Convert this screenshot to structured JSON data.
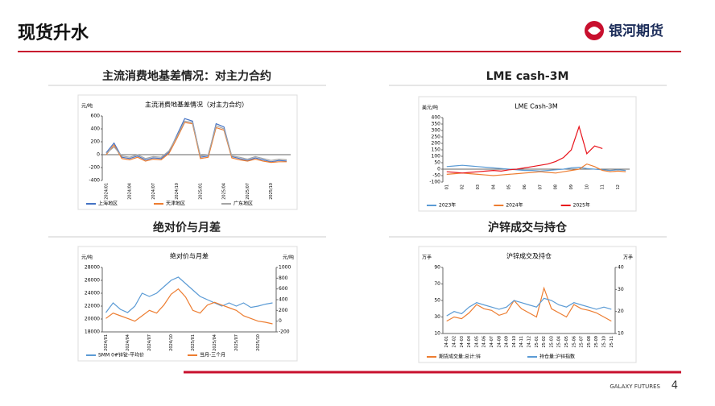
{
  "header": {
    "title": "现货升水",
    "logo": "银河期货"
  },
  "sections": [
    "主流消费地基差情况：对主力合约",
    "LME cash-3M",
    "绝对价与月差",
    "沪锌成交与持仓"
  ],
  "footer": {
    "brand": "GALAXY FUTURES",
    "page": "4"
  },
  "chart_data": [
    {
      "type": "line",
      "title": "主流消费地基差情况（对主力合约）",
      "ylabel": "元/吨",
      "grid": false,
      "categories": [
        "2024/01",
        null,
        null,
        "2024/04",
        null,
        null,
        "2024/07",
        null,
        null,
        "2024/10",
        null,
        null,
        "2025/01",
        null,
        null,
        "2025/04",
        null,
        null,
        "2025/07",
        null,
        null,
        "2025/10",
        null,
        null
      ],
      "ylim": [
        -400,
        600
      ],
      "yticks": [
        -400,
        -200,
        0,
        200,
        400,
        600
      ],
      "series": [
        {
          "name": "上海地区",
          "color": "#4472c4",
          "values": [
            30,
            180,
            -40,
            -60,
            -20,
            -80,
            -50,
            -60,
            40,
            300,
            560,
            520,
            -40,
            -20,
            480,
            430,
            -30,
            -60,
            -90,
            -50,
            -80,
            -110,
            -90,
            -100
          ]
        },
        {
          "name": "天津地区",
          "color": "#ed7d31",
          "values": [
            0,
            150,
            -60,
            -80,
            -40,
            -100,
            -70,
            -80,
            20,
            250,
            500,
            480,
            -60,
            -40,
            420,
            380,
            -50,
            -80,
            -100,
            -70,
            -100,
            -120,
            -110,
            -110
          ]
        },
        {
          "name": "广东地区",
          "color": "#a5a5a5",
          "values": [
            20,
            120,
            -20,
            -40,
            0,
            -60,
            -30,
            -40,
            60,
            280,
            520,
            500,
            -20,
            0,
            450,
            400,
            -20,
            -40,
            -70,
            -30,
            -60,
            -90,
            -70,
            -80
          ]
        }
      ]
    },
    {
      "type": "line",
      "title": "LME Cash-3M",
      "ylabel": "美元/吨",
      "grid": false,
      "categories": [
        "01",
        null,
        "02",
        null,
        "03",
        null,
        "04",
        null,
        "05",
        null,
        "06",
        null,
        "07",
        null,
        "08",
        null,
        "09",
        null,
        "10",
        null,
        "11",
        null,
        "12",
        null
      ],
      "ylim": [
        -100,
        400
      ],
      "yticks": [
        -100,
        -50,
        0,
        50,
        100,
        150,
        200,
        250,
        300,
        350,
        400
      ],
      "series": [
        {
          "name": "2023年",
          "color": "#5b9bd5",
          "values": [
            20,
            25,
            30,
            25,
            20,
            15,
            10,
            5,
            0,
            -5,
            -10,
            -10,
            -15,
            -10,
            -5,
            0,
            10,
            15,
            5,
            0,
            -5,
            -10,
            -5,
            -10
          ]
        },
        {
          "name": "2024年",
          "color": "#ed7d31",
          "values": [
            -40,
            -35,
            -30,
            -35,
            -40,
            -45,
            -50,
            -45,
            -40,
            -35,
            -30,
            -25,
            -20,
            -25,
            -30,
            -20,
            -10,
            0,
            40,
            20,
            -10,
            -20,
            -15,
            -20
          ]
        },
        {
          "name": "2025年",
          "color": "#e8141c",
          "values": [
            -20,
            -25,
            -30,
            -25,
            -20,
            -15,
            -10,
            -15,
            -5,
            0,
            10,
            20,
            30,
            40,
            60,
            90,
            150,
            330,
            120,
            180,
            160,
            null,
            null,
            null
          ]
        }
      ]
    },
    {
      "type": "line",
      "title": "绝对价与月差",
      "ylabel": "元/吨",
      "y2label": "元/吨",
      "grid": false,
      "categories": [
        "2024/01",
        null,
        null,
        "2024/04",
        null,
        null,
        "2024/07",
        null,
        null,
        "2024/10",
        null,
        null,
        "2025/01",
        null,
        null,
        "2025/04",
        null,
        null,
        "2025/07",
        null,
        null,
        "2025/10",
        null,
        null
      ],
      "ylim": [
        18000,
        28000
      ],
      "yticks": [
        18000,
        20000,
        22000,
        24000,
        26000,
        28000
      ],
      "y2lim": [
        -200,
        1000
      ],
      "y2ticks": [
        -200,
        0,
        200,
        400,
        600,
        800,
        1000
      ],
      "series": [
        {
          "name": "SMM 0#锌锭-平均价",
          "color": "#5b9bd5",
          "values": [
            21000,
            22500,
            21500,
            21000,
            22000,
            24000,
            23500,
            24000,
            25000,
            26000,
            26500,
            25500,
            24500,
            23500,
            23000,
            22500,
            22000,
            22500,
            22000,
            22500,
            21800,
            22000,
            22300,
            22500
          ]
        },
        {
          "name": "当月-三个月",
          "color": "#ed7d31",
          "axis": "y2",
          "values": [
            50,
            150,
            100,
            50,
            0,
            100,
            200,
            150,
            300,
            500,
            600,
            450,
            200,
            150,
            300,
            350,
            300,
            250,
            200,
            100,
            50,
            0,
            -20,
            -50
          ]
        }
      ]
    },
    {
      "type": "line",
      "title": "沪锌成交及持仓",
      "ylabel": "万手",
      "y2label": "万手",
      "grid": false,
      "categories": [
        "24-01",
        "24-02",
        "24-03",
        "24-04",
        "24-05",
        "24-06",
        "24-07",
        "24-08",
        "24-09",
        "24-10",
        "24-11",
        "24-12",
        "25-01",
        "25-02",
        "25-03",
        "25-04",
        "25-05",
        "25-06",
        "25-07",
        "25-08",
        "25-09",
        "25-10",
        "25-11"
      ],
      "ylim": [
        10,
        90
      ],
      "yticks": [
        10,
        30,
        50,
        70,
        90
      ],
      "y2lim": [
        10,
        40
      ],
      "y2ticks": [
        10,
        20,
        30,
        40
      ],
      "series": [
        {
          "name": "期货成交量:总计:锌",
          "color": "#ed7d31",
          "values": [
            25,
            30,
            28,
            35,
            45,
            40,
            38,
            32,
            35,
            50,
            40,
            35,
            30,
            65,
            40,
            35,
            30,
            45,
            40,
            38,
            35,
            30,
            25
          ]
        },
        {
          "name": "持仓量:沪锌指数",
          "color": "#5b9bd5",
          "axis": "y2",
          "values": [
            18,
            20,
            19,
            22,
            24,
            23,
            22,
            21,
            22,
            25,
            24,
            23,
            22,
            26,
            25,
            23,
            22,
            24,
            23,
            22,
            21,
            22,
            21
          ]
        }
      ]
    }
  ]
}
